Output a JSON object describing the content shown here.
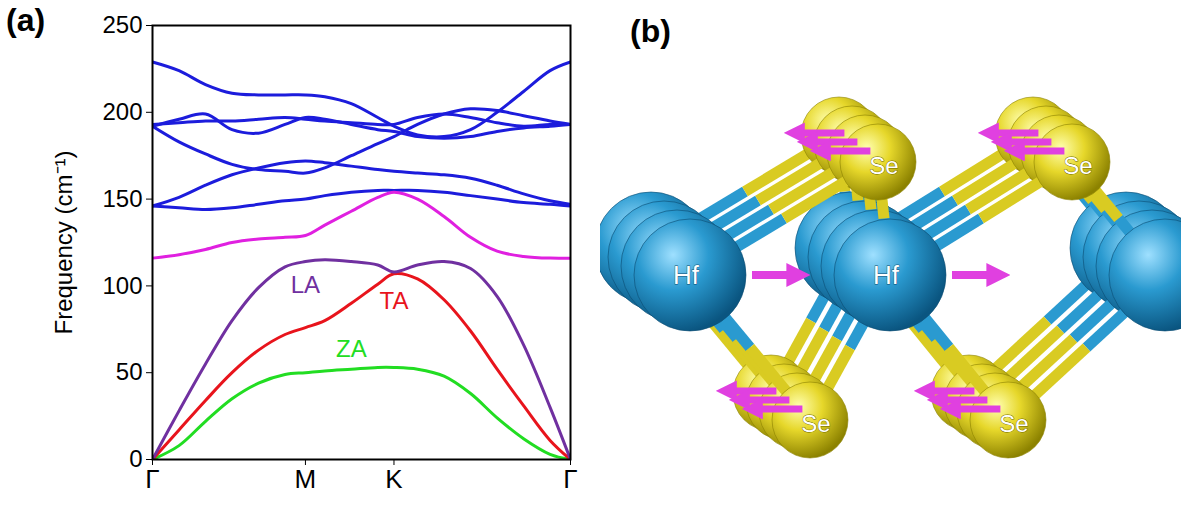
{
  "chart_data": {
    "type": "line",
    "panel_label": "(a)",
    "y_label": "Frequency (cm⁻¹)",
    "x": [
      0,
      0.1,
      0.2,
      0.3,
      0.4,
      0.5,
      0.577,
      0.65,
      0.75,
      0.85,
      0.911,
      1.0,
      1.1,
      1.2,
      1.3,
      1.4,
      1.5,
      1.577
    ],
    "xlim": [
      0,
      1.577
    ],
    "xticks": [
      {
        "value": 0,
        "label": "Γ"
      },
      {
        "value": 0.577,
        "label": "M"
      },
      {
        "value": 0.911,
        "label": "K"
      },
      {
        "value": 1.577,
        "label": "Γ"
      }
    ],
    "ylim": [
      0,
      250
    ],
    "yticks": [
      0,
      50,
      100,
      150,
      200,
      250
    ],
    "grid": false,
    "series": [
      {
        "name": "LA",
        "color": "#7030a0",
        "values": [
          0,
          28,
          55,
          80,
          99,
          111,
          114,
          115,
          114,
          112,
          108,
          112,
          114,
          110,
          94,
          66,
          30,
          0
        ]
      },
      {
        "name": "TA",
        "color": "#e8141c",
        "values": [
          0,
          17,
          34,
          50,
          63,
          72,
          76,
          80,
          90,
          101,
          107,
          104,
          92,
          74,
          52,
          31,
          11,
          0
        ]
      },
      {
        "name": "ZA",
        "color": "#22dd22",
        "values": [
          0,
          8,
          22,
          35,
          44,
          49,
          50,
          51,
          52,
          53,
          53,
          52,
          48,
          38,
          24,
          12,
          3,
          0
        ]
      },
      {
        "color": "#e020e0",
        "values": [
          116,
          118,
          121,
          125,
          127,
          128,
          129,
          135,
          143,
          151,
          154,
          150,
          140,
          128,
          120,
          117,
          116,
          116
        ]
      },
      {
        "color": "#1c1cdc",
        "values": [
          146,
          145,
          144,
          145,
          147,
          149,
          150,
          152,
          154,
          155,
          155,
          155,
          154,
          152,
          150,
          148,
          147,
          146
        ]
      },
      {
        "color": "#1c1cdc",
        "values": [
          146,
          151,
          158,
          164,
          168,
          171,
          172,
          171,
          169,
          167,
          166,
          165,
          164,
          162,
          158,
          153,
          149,
          147
        ]
      },
      {
        "color": "#1c1cdc",
        "values": [
          192,
          183,
          176,
          170,
          167,
          166,
          165,
          168,
          175,
          182,
          186,
          193,
          199,
          202,
          201,
          198,
          195,
          193
        ]
      },
      {
        "color": "#1c1cdc",
        "values": [
          192,
          196,
          199,
          190,
          188,
          193,
          197,
          196,
          193,
          190,
          189,
          186,
          185,
          186,
          189,
          191,
          192,
          193
        ]
      },
      {
        "color": "#1c1cdc",
        "values": [
          193,
          194,
          195,
          195,
          196,
          197,
          196,
          195,
          194,
          193,
          193,
          197,
          199,
          197,
          194,
          192,
          193,
          193
        ]
      },
      {
        "color": "#1c1cdc",
        "values": [
          229,
          224,
          216,
          211,
          210,
          210,
          210,
          209,
          205,
          197,
          192,
          187,
          186,
          190,
          200,
          212,
          224,
          229
        ]
      }
    ]
  },
  "diagram": {
    "panel_label": "(b)",
    "atoms": [
      {
        "label": "Hf"
      },
      {
        "label": "Hf"
      },
      {
        "label": "Se"
      },
      {
        "label": "Se"
      },
      {
        "label": "Se"
      },
      {
        "label": "Se"
      }
    ]
  }
}
